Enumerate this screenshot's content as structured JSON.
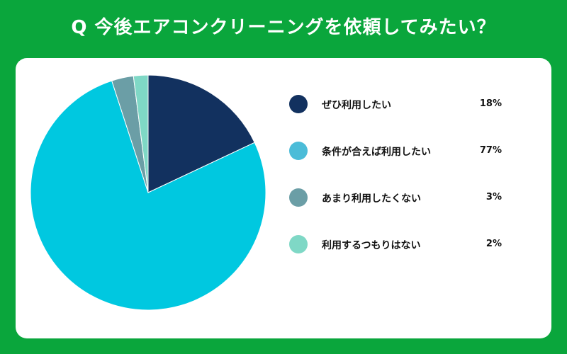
{
  "title": "Q 今後エアコンクリーニングを依頼してみたい？",
  "chart_data": {
    "type": "pie",
    "title": "Q 今後エアコンクリーニングを依頼してみたい？",
    "categories": [
      "ぜひ利用したい",
      "条件が合えば利用したい",
      "あまり利用したくない",
      "利用するつもりはない"
    ],
    "values": [
      18,
      77,
      3,
      2
    ],
    "value_labels": [
      "18%",
      "77%",
      "3%",
      "2%"
    ],
    "colors": [
      "#12315f",
      "#00c8e0",
      "#6b9ea6",
      "#7fd8c6"
    ],
    "legend_colors": [
      "#12315f",
      "#4bbcd8",
      "#6b9ea6",
      "#7fd8c6"
    ],
    "legend_position": "right",
    "start_angle": "12 o'clock",
    "direction": "clockwise"
  }
}
